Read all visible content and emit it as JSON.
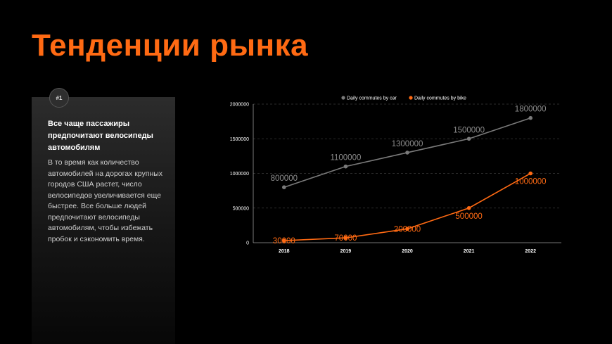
{
  "page": {
    "title": "Тенденции рынка",
    "card": {
      "badge": "#1",
      "heading": "Все чаще пассажиры предпочитают велосипеды автомобилям",
      "text": "В то время как количество автомобилей на дорогах крупных городов США растет, число велосипедов увеличивается еще быстрее. Все больше людей предпочитают велосипеды автомобилям, чтобы избежать пробок и сэкономить время."
    }
  },
  "chart_data": {
    "type": "line",
    "title": "",
    "xlabel": "",
    "ylabel": "",
    "categories": [
      "2018",
      "2019",
      "2020",
      "2021",
      "2022"
    ],
    "ylim": [
      0,
      2000000
    ],
    "yticks": [
      0,
      500000,
      1000000,
      1500000,
      2000000
    ],
    "grid": true,
    "legend_position": "top-center",
    "series": [
      {
        "name": "Daily commutes by car",
        "color": "#7a7a7a",
        "label_color": "#8c8c8c",
        "values": [
          800000,
          1100000,
          1300000,
          1500000,
          1800000
        ],
        "labels": [
          "800000",
          "1100000",
          "1300000",
          "1500000",
          "1800000"
        ]
      },
      {
        "name": "Daily commutes by bike",
        "color": "#ff6a13",
        "label_color": "#ff6a13",
        "values": [
          30000,
          70000,
          200000,
          500000,
          1000000
        ],
        "labels": [
          "30000",
          "70000",
          "200000",
          "500000",
          "1000000"
        ]
      }
    ]
  }
}
